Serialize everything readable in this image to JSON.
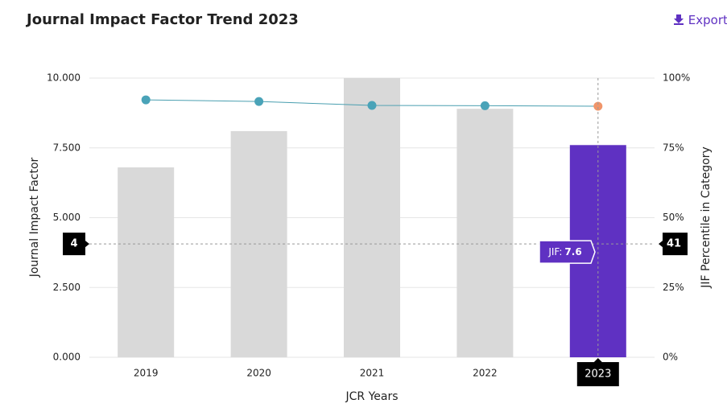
{
  "header": {
    "export": "Export"
  },
  "chart_data": {
    "type": "combo",
    "title": "Journal Impact Factor Trend 2023",
    "x_title": "JCR Years",
    "y_title": "Journal Impact Factor",
    "y2_title": "JIF Percentile in Category",
    "categories": [
      "2019",
      "2020",
      "2021",
      "2022",
      "2023"
    ],
    "series": [
      {
        "type": "bar",
        "values": [
          6.8,
          8.1,
          10.0,
          8.9,
          7.6
        ],
        "colors": [
          "#d9d9d9",
          "#d9d9d9",
          "#d9d9d9",
          "#d9d9d9",
          "#5f31c2"
        ]
      },
      {
        "type": "line",
        "axis": "y2",
        "color": "#4a9fb0",
        "values": [
          92.2,
          91.6,
          90.2,
          90.1,
          89.9
        ],
        "point_colors": [
          "#4aa3b8",
          "#4aa3b8",
          "#4aa3b8",
          "#4aa3b8",
          "#f0956a"
        ]
      }
    ],
    "ylim": [
      0,
      10
    ],
    "yticks": [
      {
        "value": 0,
        "label": "0.000"
      },
      {
        "value": 2.5,
        "label": "2.500"
      },
      {
        "value": 5,
        "label": "5.000"
      },
      {
        "value": 7.5,
        "label": "7.500"
      },
      {
        "value": 10,
        "label": "10.000"
      }
    ],
    "y2lim": [
      0,
      100
    ],
    "y2ticks": [
      {
        "value": 0,
        "label": "0%"
      },
      {
        "value": 25,
        "label": "25%"
      },
      {
        "value": 50,
        "label": "50%"
      },
      {
        "value": 75,
        "label": "75%"
      },
      {
        "value": 100,
        "label": "100%"
      }
    ],
    "grid": true,
    "crosshair": {
      "x": "2023",
      "y": 4.06,
      "y_label": "4",
      "y2": 40.6,
      "y2_label": "41"
    },
    "tooltip": {
      "label": "JIF:"
    }
  }
}
